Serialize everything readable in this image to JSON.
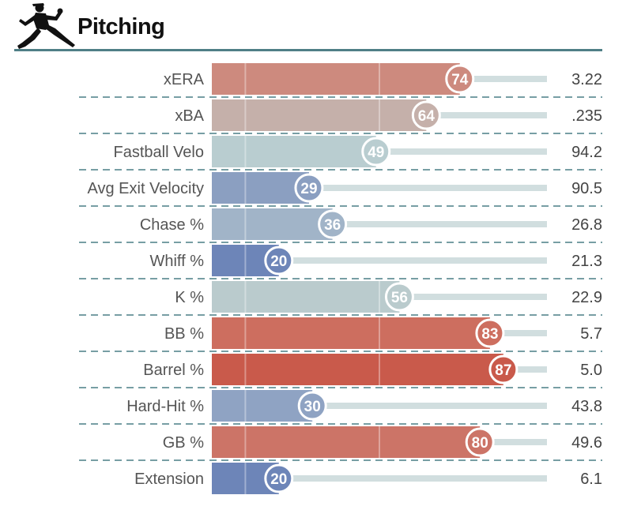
{
  "title": "Pitching",
  "icon": "pitcher-icon",
  "colors": {
    "header_rule": "#4f7f86",
    "track": "#d1dedf",
    "divider": "#4a7e85",
    "label": "#555555",
    "value": "#444444"
  },
  "chart_data": {
    "type": "bar",
    "orientation": "horizontal",
    "title": "Pitching",
    "xlim": [
      0,
      100
    ],
    "categories": [
      "xERA",
      "xBA",
      "Fastball Velo",
      "Avg Exit Velocity",
      "Chase %",
      "Whiff %",
      "K %",
      "BB %",
      "Barrel %",
      "Hard-Hit %",
      "GB %",
      "Extension"
    ],
    "percentile": [
      74,
      64,
      49,
      29,
      36,
      20,
      56,
      83,
      87,
      30,
      80,
      20
    ],
    "value_labels": [
      "3.22",
      ".235",
      "94.2",
      "90.5",
      "26.8",
      "21.3",
      "22.9",
      "5.7",
      "5.0",
      "43.8",
      "49.6",
      "6.1"
    ],
    "bar_colors": [
      "#cd8a7e",
      "#c5b0aa",
      "#b9cdd0",
      "#8b9fc1",
      "#a1b4c8",
      "#6d85b8",
      "#bacbcd",
      "#cd6e5f",
      "#c95a4b",
      "#8fa3c3",
      "#cc7467",
      "#6d85b8"
    ]
  }
}
